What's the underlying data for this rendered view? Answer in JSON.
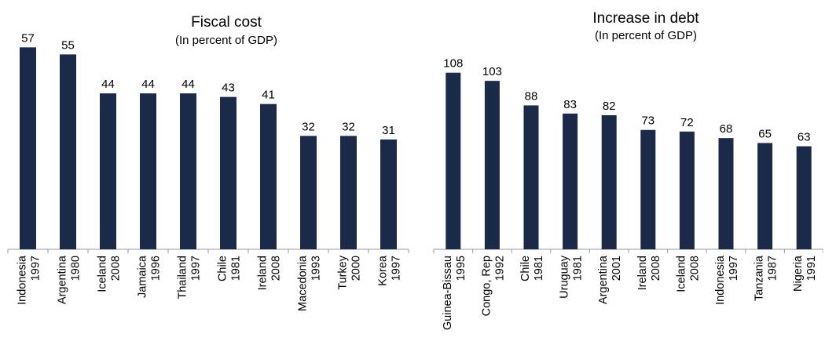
{
  "chart_data": [
    {
      "type": "bar",
      "title": "Fiscal cost",
      "subtitle": "(In percent of GDP)",
      "bar_color": "#1b2a48",
      "categories": [
        [
          "Indonesia",
          "1997"
        ],
        [
          "Argentina",
          "1980"
        ],
        [
          "Iceland",
          "2008"
        ],
        [
          "Jamaica",
          "1996"
        ],
        [
          "Thailand",
          "1997"
        ],
        [
          "Chile",
          "1981"
        ],
        [
          "Ireland",
          "2008"
        ],
        [
          "Macedonia",
          "1993"
        ],
        [
          "Turkey",
          "2000"
        ],
        [
          "Korea",
          "1997"
        ]
      ],
      "values": [
        57,
        55,
        44,
        44,
        44,
        43,
        41,
        32,
        32,
        31
      ],
      "ylim": [
        0,
        60
      ]
    },
    {
      "type": "bar",
      "title": "Increase in debt",
      "subtitle": "(In percent of GDP)",
      "bar_color": "#1b2a48",
      "categories": [
        [
          "Guinea-Bissau",
          "1995"
        ],
        [
          "Congo, Rep",
          "1992"
        ],
        [
          "Chile",
          "1981"
        ],
        [
          "Uruguay",
          "1981"
        ],
        [
          "Argentina",
          "2001"
        ],
        [
          "Ireland",
          "2008"
        ],
        [
          "Iceland",
          "2008"
        ],
        [
          "Indonesia",
          "1997"
        ],
        [
          "Tanzania",
          "1987"
        ],
        [
          "Nigeria",
          "1991"
        ]
      ],
      "values": [
        108,
        103,
        88,
        83,
        82,
        73,
        72,
        68,
        65,
        63
      ],
      "ylim": [
        0,
        110
      ]
    }
  ]
}
